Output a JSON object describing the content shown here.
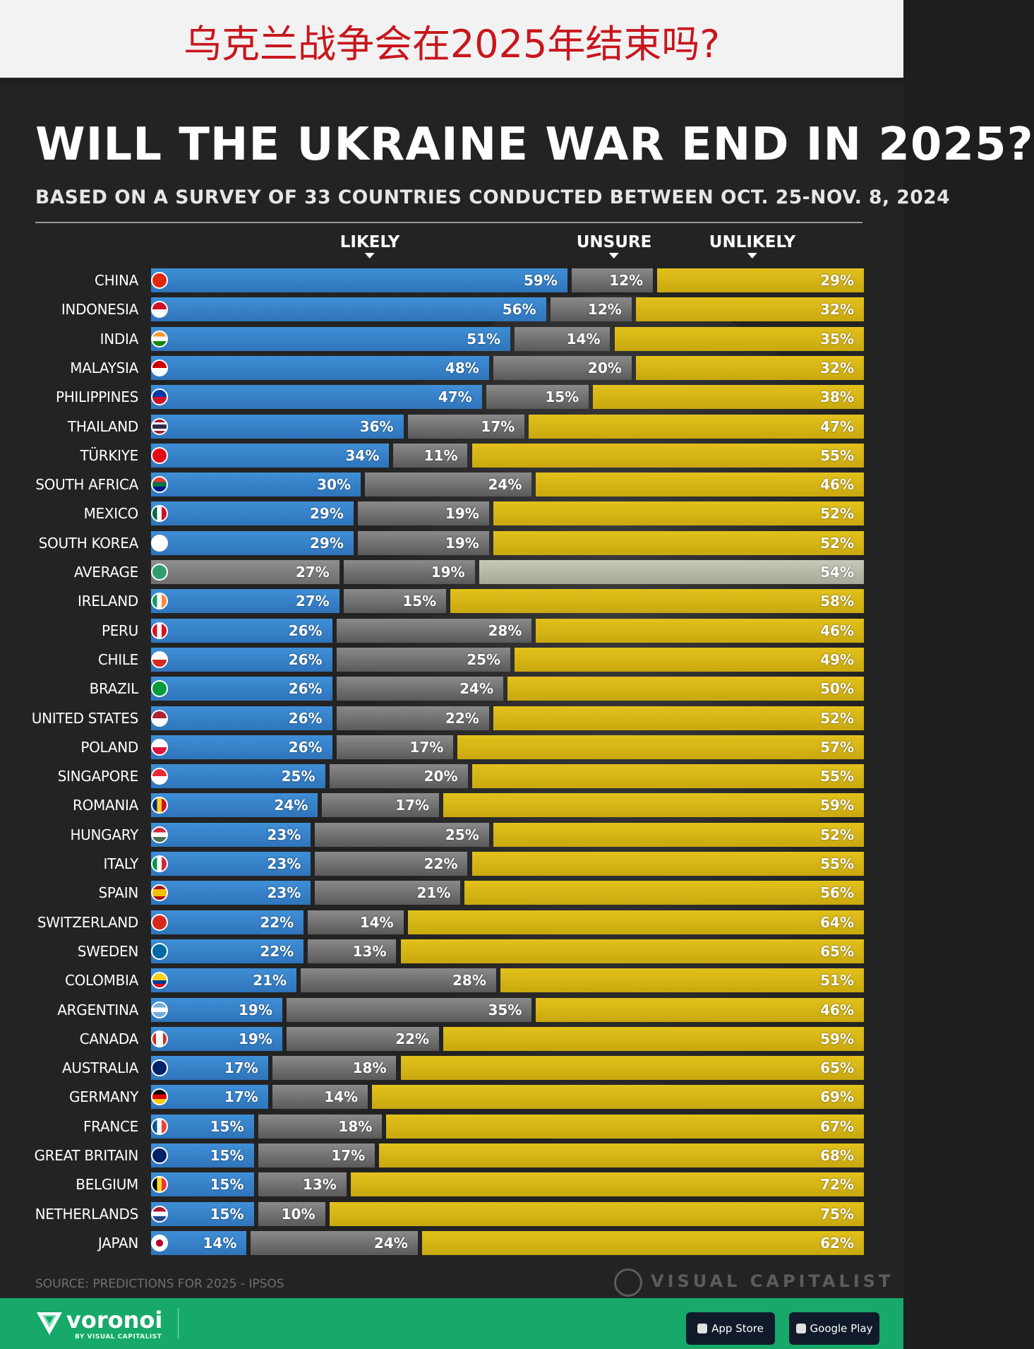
{
  "header": {
    "title": "乌克兰战争会在2025年结束吗?"
  },
  "infographic": {
    "title": "WILL THE UKRAINE WAR END IN 2025?",
    "subtitle": "BASED ON A SURVEY OF 33 COUNTRIES CONDUCTED BETWEEN OCT. 25-NOV. 8, 2024",
    "source": "SOURCE: PREDICTIONS FOR 2025 - IPSOS",
    "brand": "VISUAL CAPITALIST"
  },
  "footer": {
    "brand": "voronoi",
    "brand_sub": "BY VISUAL CAPITALIST",
    "app_store": "App Store",
    "google_play": "Google Play"
  },
  "colors": {
    "likely": "#3a87d0",
    "unsure": "#707070",
    "unlikely": "#d9b816",
    "average": "#8e8e8e"
  },
  "chart_data": {
    "type": "bar",
    "orientation": "horizontal",
    "stacked": true,
    "unit": "%",
    "series_names": [
      "LIKELY",
      "UNSURE",
      "UNLIKELY"
    ],
    "categories": [
      "CHINA",
      "INDONESIA",
      "INDIA",
      "MALAYSIA",
      "PHILIPPINES",
      "THAILAND",
      "TÜRKIYE",
      "SOUTH AFRICA",
      "MEXICO",
      "SOUTH KOREA",
      "AVERAGE",
      "IRELAND",
      "PERU",
      "CHILE",
      "BRAZIL",
      "UNITED STATES",
      "POLAND",
      "SINGAPORE",
      "ROMANIA",
      "HUNGARY",
      "ITALY",
      "SPAIN",
      "SWITZERLAND",
      "SWEDEN",
      "COLOMBIA",
      "ARGENTINA",
      "CANADA",
      "AUSTRALIA",
      "GERMANY",
      "FRANCE",
      "GREAT BRITAIN",
      "BELGIUM",
      "NETHERLANDS",
      "JAPAN"
    ],
    "series": [
      {
        "name": "LIKELY",
        "values": [
          59,
          56,
          51,
          48,
          47,
          36,
          34,
          30,
          29,
          29,
          27,
          27,
          26,
          26,
          26,
          26,
          26,
          25,
          24,
          23,
          23,
          23,
          22,
          22,
          21,
          19,
          19,
          17,
          17,
          15,
          15,
          15,
          15,
          14
        ]
      },
      {
        "name": "UNSURE",
        "values": [
          12,
          12,
          14,
          20,
          15,
          17,
          11,
          24,
          19,
          19,
          19,
          15,
          28,
          25,
          24,
          22,
          17,
          20,
          17,
          25,
          22,
          21,
          14,
          13,
          28,
          35,
          22,
          18,
          14,
          18,
          17,
          13,
          10,
          24
        ]
      },
      {
        "name": "UNLIKELY",
        "values": [
          29,
          32,
          35,
          32,
          38,
          47,
          55,
          46,
          52,
          52,
          54,
          58,
          46,
          49,
          50,
          52,
          57,
          55,
          59,
          52,
          55,
          56,
          64,
          65,
          51,
          46,
          59,
          65,
          69,
          67,
          68,
          72,
          75,
          62
        ]
      }
    ],
    "highlight_category": "AVERAGE",
    "xlim": [
      0,
      100
    ]
  }
}
